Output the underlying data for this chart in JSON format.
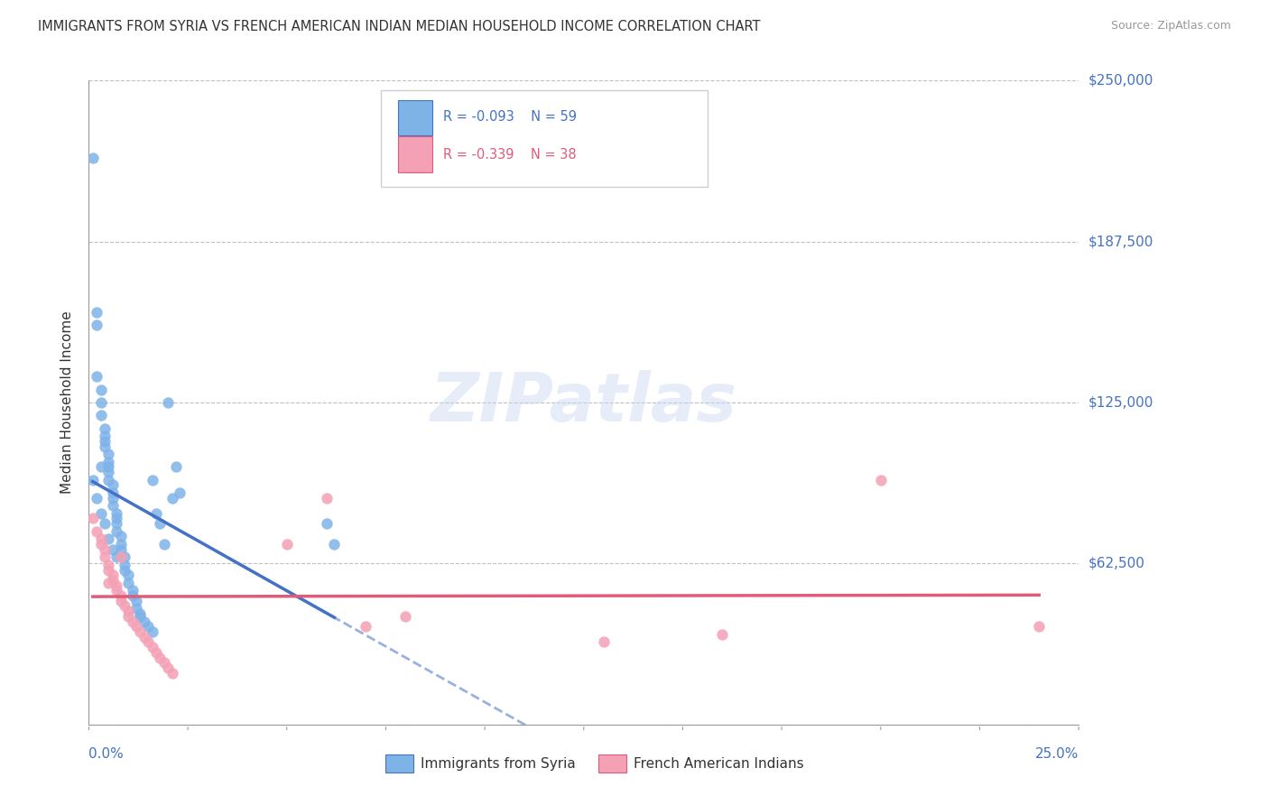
{
  "title": "IMMIGRANTS FROM SYRIA VS FRENCH AMERICAN INDIAN MEDIAN HOUSEHOLD INCOME CORRELATION CHART",
  "source": "Source: ZipAtlas.com",
  "ylabel": "Median Household Income",
  "y_ticks": [
    0,
    62500,
    125000,
    187500,
    250000
  ],
  "xlim": [
    0.0,
    0.25
  ],
  "ylim": [
    0,
    250000
  ],
  "syria_color": "#7EB3E8",
  "french_color": "#F4A0B5",
  "syria_line_color": "#4472C4",
  "french_line_color": "#E05C7A",
  "watermark": "ZIPatlas",
  "syria_x": [
    0.001,
    0.002,
    0.002,
    0.003,
    0.003,
    0.003,
    0.004,
    0.004,
    0.004,
    0.004,
    0.005,
    0.005,
    0.005,
    0.005,
    0.005,
    0.006,
    0.006,
    0.006,
    0.006,
    0.007,
    0.007,
    0.007,
    0.007,
    0.008,
    0.008,
    0.008,
    0.009,
    0.009,
    0.009,
    0.01,
    0.01,
    0.011,
    0.011,
    0.012,
    0.012,
    0.013,
    0.013,
    0.014,
    0.015,
    0.016,
    0.016,
    0.017,
    0.018,
    0.019,
    0.02,
    0.021,
    0.022,
    0.023,
    0.06,
    0.062,
    0.001,
    0.002,
    0.003,
    0.004,
    0.005,
    0.006,
    0.007,
    0.002,
    0.003
  ],
  "syria_y": [
    220000,
    155000,
    135000,
    130000,
    125000,
    120000,
    115000,
    112000,
    110000,
    108000,
    105000,
    102000,
    100000,
    98000,
    95000,
    93000,
    90000,
    88000,
    85000,
    82000,
    80000,
    78000,
    75000,
    73000,
    70000,
    68000,
    65000,
    62000,
    60000,
    58000,
    55000,
    52000,
    50000,
    48000,
    45000,
    43000,
    42000,
    40000,
    38000,
    36000,
    95000,
    82000,
    78000,
    70000,
    125000,
    88000,
    100000,
    90000,
    78000,
    70000,
    95000,
    88000,
    82000,
    78000,
    72000,
    68000,
    65000,
    160000,
    100000
  ],
  "french_x": [
    0.002,
    0.003,
    0.004,
    0.004,
    0.005,
    0.005,
    0.006,
    0.006,
    0.007,
    0.007,
    0.008,
    0.008,
    0.009,
    0.01,
    0.01,
    0.011,
    0.012,
    0.013,
    0.014,
    0.015,
    0.016,
    0.017,
    0.018,
    0.019,
    0.02,
    0.021,
    0.05,
    0.06,
    0.07,
    0.08,
    0.13,
    0.16,
    0.2,
    0.24,
    0.001,
    0.003,
    0.005,
    0.008
  ],
  "french_y": [
    75000,
    70000,
    68000,
    65000,
    62000,
    60000,
    58000,
    56000,
    54000,
    52000,
    50000,
    48000,
    46000,
    44000,
    42000,
    40000,
    38000,
    36000,
    34000,
    32000,
    30000,
    28000,
    26000,
    24000,
    22000,
    20000,
    70000,
    88000,
    38000,
    42000,
    32000,
    35000,
    95000,
    38000,
    80000,
    72000,
    55000,
    65000
  ]
}
